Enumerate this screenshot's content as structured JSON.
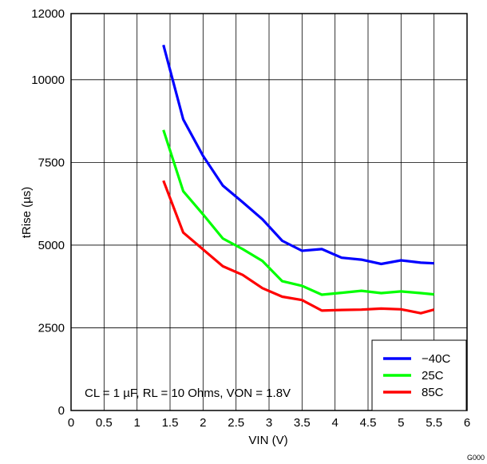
{
  "chart_data": {
    "type": "line",
    "xlabel": "VIN (V)",
    "ylabel": "tRise (µs)",
    "xlim": [
      0,
      6
    ],
    "ylim": [
      0,
      12000
    ],
    "x_ticks": [
      0,
      0.5,
      1,
      1.5,
      2,
      2.5,
      3,
      3.5,
      4,
      4.5,
      5,
      5.5,
      6
    ],
    "x_tick_labels": [
      "0",
      "0.5",
      "1",
      "1.5",
      "2",
      "2.5",
      "3",
      "3.5",
      "4",
      "4.5",
      "5",
      "5.5",
      "6"
    ],
    "y_ticks": [
      0,
      2500,
      5000,
      7500,
      10000,
      12000
    ],
    "y_tick_labels": [
      "0",
      "2500",
      "5000",
      "7500",
      "10000",
      "12000"
    ],
    "grid": true,
    "legend_position": "bottom-right",
    "annotation": "CL = 1 µF, RL = 10 Ohms, VON = 1.8V",
    "figure_code": "G000",
    "x": [
      1.4,
      1.7,
      2.0,
      2.3,
      2.6,
      2.9,
      3.2,
      3.5,
      3.8,
      4.1,
      4.4,
      4.7,
      5.0,
      5.3,
      5.5
    ],
    "series": [
      {
        "name": "−40C",
        "color": "#0000ff",
        "values": [
          11050,
          8800,
          7700,
          6800,
          6300,
          5780,
          5130,
          4830,
          4880,
          4620,
          4560,
          4430,
          4540,
          4470,
          4450
        ]
      },
      {
        "name": "25C",
        "color": "#00ff00",
        "values": [
          8480,
          6630,
          5930,
          5200,
          4880,
          4520,
          3910,
          3770,
          3500,
          3560,
          3620,
          3550,
          3600,
          3550,
          3510
        ]
      },
      {
        "name": "85C",
        "color": "#ff0000",
        "values": [
          6950,
          5380,
          4870,
          4360,
          4100,
          3700,
          3440,
          3340,
          3020,
          3040,
          3050,
          3080,
          3060,
          2940,
          3050
        ]
      }
    ]
  }
}
